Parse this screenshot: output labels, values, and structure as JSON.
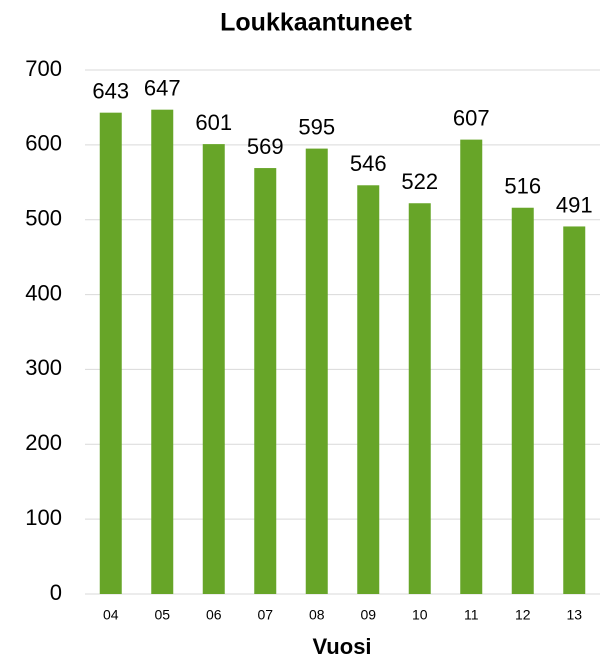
{
  "chart_data": {
    "type": "bar",
    "title": "Loukkaantuneet",
    "x_label": "Vuosi",
    "categories": [
      "04",
      "05",
      "06",
      "07",
      "08",
      "09",
      "10",
      "11",
      "12",
      "13"
    ],
    "values": [
      643,
      647,
      601,
      569,
      595,
      546,
      522,
      607,
      516,
      491
    ],
    "color": "#67a528",
    "ylim": [
      0,
      700
    ],
    "yticks": [
      0,
      100,
      200,
      300,
      400,
      500,
      600,
      700
    ],
    "grid": true
  }
}
